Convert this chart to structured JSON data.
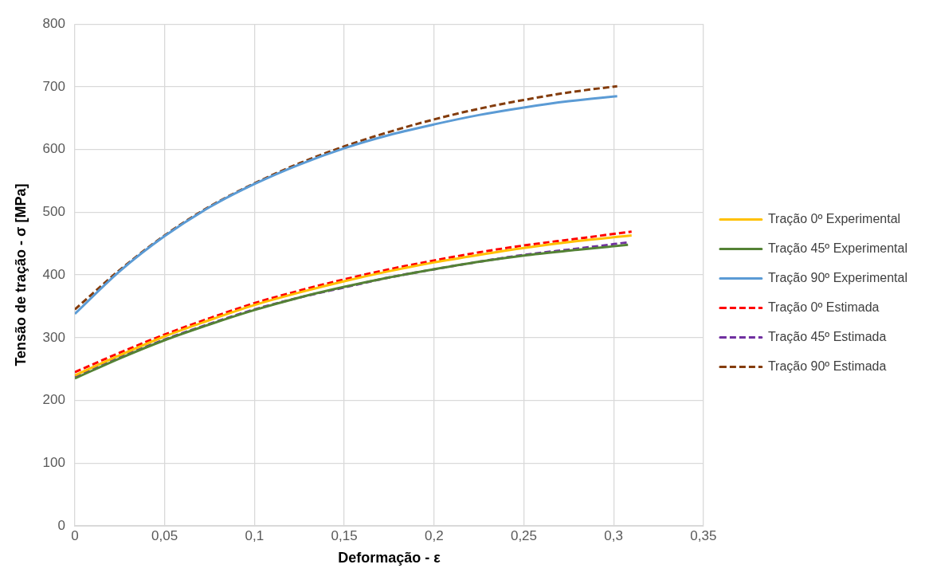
{
  "chart_data": {
    "type": "line",
    "xlabel": "Deformação - ε",
    "ylabel": "Tensão de tração - σ [MPa]",
    "xlim": [
      0,
      0.35
    ],
    "xticks": [
      0,
      {
        "value": 0.05,
        "label": "0,05"
      },
      {
        "value": 0.1,
        "label": "0,1"
      },
      {
        "value": 0.15,
        "label": "0,15"
      },
      {
        "value": 0.2,
        "label": "0,2"
      },
      {
        "value": 0.25,
        "label": "0,25"
      },
      {
        "value": 0.3,
        "label": "0,3"
      },
      {
        "value": 0.35,
        "label": "0,35"
      }
    ],
    "ylim": [
      0,
      800
    ],
    "yticks": [
      0,
      100,
      200,
      300,
      400,
      500,
      600,
      700,
      800
    ],
    "grid": true,
    "legend": "right",
    "marker": "none",
    "series": [
      {
        "name": "Tração 0º Experimental",
        "color": "#ffc000",
        "line_style": "solid",
        "x": [
          0,
          0.025,
          0.05,
          0.075,
          0.1,
          0.125,
          0.15,
          0.175,
          0.2,
          0.225,
          0.25,
          0.28,
          0.31
        ],
        "values": [
          240,
          272,
          302,
          328,
          352,
          372,
          390,
          406,
          420,
          432,
          443,
          454,
          463
        ]
      },
      {
        "name": "Tração 45º Experimental",
        "color": "#548235",
        "line_style": "solid",
        "x": [
          0,
          0.025,
          0.05,
          0.075,
          0.1,
          0.125,
          0.15,
          0.175,
          0.2,
          0.225,
          0.25,
          0.28,
          0.308
        ],
        "values": [
          235,
          267,
          296,
          321,
          344,
          364,
          381,
          396,
          409,
          421,
          431,
          440,
          448
        ]
      },
      {
        "name": "Tração 90º Experimental",
        "color": "#5b9bd5",
        "line_style": "solid",
        "x": [
          0,
          0.025,
          0.05,
          0.075,
          0.1,
          0.125,
          0.15,
          0.175,
          0.2,
          0.225,
          0.25,
          0.275,
          0.302
        ],
        "values": [
          338,
          406,
          462,
          508,
          545,
          576,
          602,
          623,
          640,
          655,
          667,
          677,
          685
        ]
      },
      {
        "name": "Tração 0º Estimada",
        "color": "#ff0000",
        "line_style": "dashed",
        "x": [
          0,
          0.025,
          0.05,
          0.075,
          0.1,
          0.125,
          0.15,
          0.175,
          0.2,
          0.225,
          0.25,
          0.28,
          0.31
        ],
        "values": [
          245,
          276,
          305,
          331,
          355,
          375,
          393,
          409,
          423,
          436,
          447,
          458,
          469
        ]
      },
      {
        "name": "Tração 45º Estimada",
        "color": "#7030a0",
        "line_style": "dashed",
        "x": [
          0,
          0.025,
          0.05,
          0.075,
          0.1,
          0.125,
          0.15,
          0.175,
          0.2,
          0.225,
          0.25,
          0.28,
          0.308
        ],
        "values": [
          238,
          269,
          297,
          322,
          345,
          364,
          380,
          396,
          409,
          421,
          432,
          442,
          452
        ]
      },
      {
        "name": "Tração 90º Estimada",
        "color": "#843c0c",
        "line_style": "dashed",
        "x": [
          0,
          0.025,
          0.05,
          0.075,
          0.1,
          0.125,
          0.15,
          0.175,
          0.2,
          0.225,
          0.25,
          0.275,
          0.302
        ],
        "values": [
          345,
          408,
          463,
          509,
          546,
          578,
          605,
          628,
          648,
          665,
          679,
          691,
          701
        ]
      }
    ]
  }
}
